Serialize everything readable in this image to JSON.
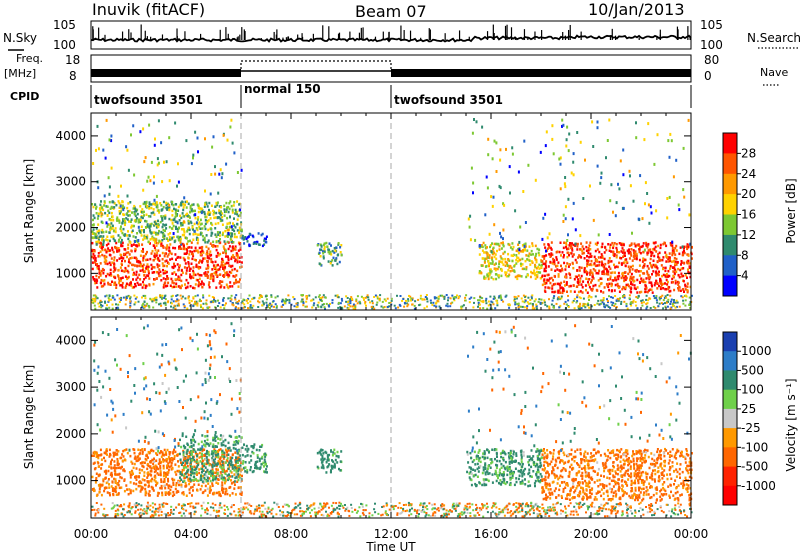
{
  "header": {
    "station": "Inuvik (fitACF)",
    "beam": "Beam 07",
    "date": "10/Jan/2013"
  },
  "left_labels": {
    "nsky": "N.Sky",
    "freq": "Freq.",
    "freq_unit": "[MHz]",
    "cpid": "CPID"
  },
  "right_labels": {
    "nsearch": "N.Search",
    "nave": "Nave"
  },
  "noise_panel": {
    "left_ticks": [
      "10^5",
      "10^0"
    ],
    "right_ticks": [
      "10^5",
      "10^0"
    ]
  },
  "freq_panel": {
    "left_ticks": [
      "18",
      "8"
    ],
    "right_ticks": [
      "80",
      "0"
    ]
  },
  "cpid_segments": [
    {
      "label": "twofsound 3501",
      "start_hour": 0,
      "end_hour": 6
    },
    {
      "label": "normal 150",
      "start_hour": 6,
      "end_hour": 12
    },
    {
      "label": "twofsound 3501",
      "start_hour": 12,
      "end_hour": 24
    }
  ],
  "x_axis": {
    "label": "Time UT",
    "ticks": [
      "00:00",
      "04:00",
      "08:00",
      "12:00",
      "16:00",
      "20:00",
      "00:00"
    ]
  },
  "chart_data": [
    {
      "type": "heatmap",
      "title": "",
      "ylabel": "Slant Range [km]",
      "xlabel": "",
      "xlim_hours": [
        0,
        24
      ],
      "ylim": [
        200,
        4500
      ],
      "yticks": [
        1000,
        2000,
        3000,
        4000
      ],
      "colorbar": {
        "label": "Power [dB]",
        "ticks": [
          "28",
          "24",
          "20",
          "16",
          "12",
          "8",
          "4"
        ],
        "colors": [
          "#ff0000",
          "#ff5500",
          "#ff9900",
          "#ffd200",
          "#7dc832",
          "#2f8a6e",
          "#2060c8",
          "#0000ff"
        ]
      },
      "regions": [
        {
          "t_start": 0.0,
          "t_end": 6.0,
          "r_start": 700,
          "r_end": 1700,
          "level": 28
        },
        {
          "t_start": 0.0,
          "t_end": 6.0,
          "r_start": 1700,
          "r_end": 2600,
          "level": 14
        },
        {
          "t_start": 6.0,
          "t_end": 7.0,
          "r_start": 1600,
          "r_end": 1900,
          "level": 6
        },
        {
          "t_start": 9.0,
          "t_end": 10.0,
          "r_start": 1200,
          "r_end": 1700,
          "level": 12
        },
        {
          "t_start": 15.5,
          "t_end": 18.0,
          "r_start": 900,
          "r_end": 1700,
          "level": 18
        },
        {
          "t_start": 18.0,
          "t_end": 24.0,
          "r_start": 600,
          "r_end": 1700,
          "level": 28
        }
      ]
    },
    {
      "type": "heatmap",
      "title": "",
      "ylabel": "Slant Range [km]",
      "xlabel": "Time UT",
      "xlim_hours": [
        0,
        24
      ],
      "ylim": [
        200,
        4500
      ],
      "yticks": [
        1000,
        2000,
        3000,
        4000
      ],
      "colorbar": {
        "label": "Velocity [m s^-1]",
        "ticks": [
          "1000",
          "500",
          "100",
          "25",
          "-25",
          "-100",
          "-500",
          "-1000"
        ],
        "colors": [
          "#1a3fb0",
          "#2d7dc8",
          "#2f8a6e",
          "#6fd04a",
          "#c8c8c8",
          "#ff9900",
          "#ff6600",
          "#ff2200",
          "#ff0000"
        ]
      },
      "regions": [
        {
          "t_start": 0.0,
          "t_end": 6.0,
          "r_start": 700,
          "r_end": 1700,
          "velocity": -150
        },
        {
          "t_start": 3.5,
          "t_end": 6.0,
          "r_start": 1000,
          "r_end": 2000,
          "velocity": 150
        },
        {
          "t_start": 6.0,
          "t_end": 7.0,
          "r_start": 1200,
          "r_end": 1800,
          "velocity": 150
        },
        {
          "t_start": 9.0,
          "t_end": 10.0,
          "r_start": 1200,
          "r_end": 1700,
          "velocity": 200
        },
        {
          "t_start": 15.0,
          "t_end": 18.0,
          "r_start": 900,
          "r_end": 1700,
          "velocity": 150
        },
        {
          "t_start": 18.0,
          "t_end": 24.0,
          "r_start": 600,
          "r_end": 1700,
          "velocity": -150
        }
      ]
    }
  ]
}
